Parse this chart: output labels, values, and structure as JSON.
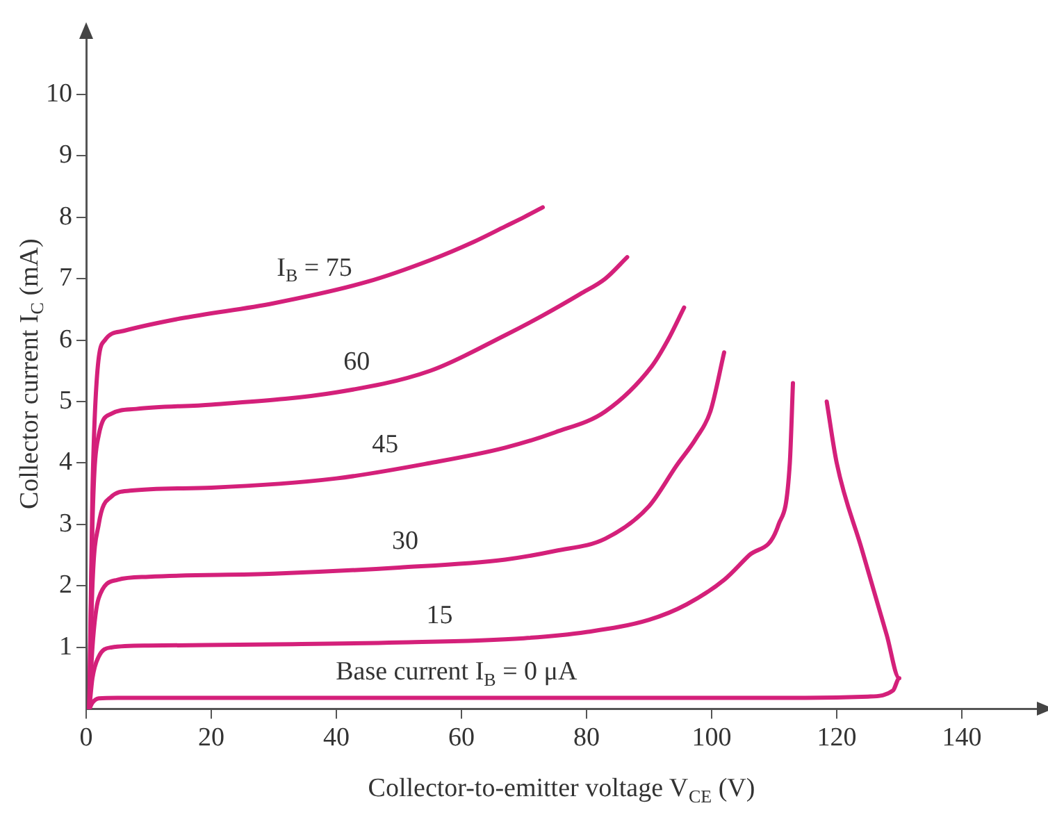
{
  "chart_data": {
    "type": "line",
    "xlabel": "Collector-to-emitter voltage V$_{CE}$ (V)",
    "ylabel": "Collector current I$_{C}$ (mA)",
    "xlim": [
      0,
      152
    ],
    "ylim": [
      0,
      10.9
    ],
    "xticks": [
      0,
      20,
      40,
      60,
      80,
      100,
      120,
      140
    ],
    "yticks": [
      1,
      2,
      3,
      4,
      5,
      6,
      7,
      8,
      9,
      10
    ],
    "grid": false,
    "legend": false,
    "marker": "none",
    "line_style": "solid",
    "series": [
      {
        "name": "Base current I$_{B}$ = 0 μA",
        "color": "#d4207a",
        "x": [
          0.5,
          1,
          2,
          5,
          20,
          40,
          60,
          80,
          100,
          115,
          125,
          129,
          130,
          128,
          124,
          120,
          118.4
        ],
        "values": [
          0,
          0.1,
          0.17,
          0.18,
          0.18,
          0.18,
          0.18,
          0.18,
          0.18,
          0.18,
          0.2,
          0.3,
          0.5,
          1.2,
          2.6,
          4.0,
          5.0
        ]
      },
      {
        "name": "15",
        "color": "#d4207a",
        "x": [
          0.5,
          1,
          2,
          4,
          10,
          30,
          50,
          70,
          80,
          90,
          96,
          102,
          106,
          110.7,
          112.5,
          113
        ],
        "values": [
          0,
          0.5,
          0.85,
          1.0,
          1.03,
          1.05,
          1.08,
          1.15,
          1.25,
          1.45,
          1.7,
          2.1,
          2.5,
          3.0,
          4.0,
          5.3
        ]
      },
      {
        "name": "30",
        "color": "#d4207a",
        "x": [
          0.5,
          1,
          2,
          5,
          10,
          30,
          50,
          67,
          75,
          83,
          90,
          94.4,
          97.5,
          99.8,
          102
        ],
        "values": [
          0,
          1.0,
          1.8,
          2.1,
          2.15,
          2.2,
          2.3,
          2.43,
          2.57,
          2.77,
          3.3,
          3.96,
          4.4,
          4.84,
          5.8
        ]
      },
      {
        "name": "45",
        "color": "#d4207a",
        "x": [
          0.5,
          1,
          2,
          4,
          7,
          20,
          40,
          55,
          67,
          75,
          83,
          90.4,
          93,
          95.6
        ],
        "values": [
          0,
          2.0,
          3.0,
          3.45,
          3.55,
          3.6,
          3.75,
          4.0,
          4.25,
          4.5,
          4.84,
          5.57,
          6.0,
          6.53
        ]
      },
      {
        "name": "60",
        "color": "#d4207a",
        "x": [
          0.5,
          1,
          2,
          4,
          8,
          20,
          40,
          55,
          67,
          73,
          79,
          83,
          86.5
        ],
        "values": [
          0,
          3.0,
          4.45,
          4.8,
          4.88,
          4.95,
          5.15,
          5.5,
          6.08,
          6.4,
          6.75,
          7.0,
          7.35
        ]
      },
      {
        "name": "I$_{B}$ = 75",
        "color": "#d4207a",
        "x": [
          0.5,
          1,
          1.8,
          3,
          6,
          15,
          30,
          45,
          55,
          62,
          67,
          70,
          73
        ],
        "values": [
          0,
          3.5,
          5.5,
          6.0,
          6.15,
          6.35,
          6.6,
          6.95,
          7.3,
          7.6,
          7.85,
          8.0,
          8.16
        ]
      }
    ]
  }
}
